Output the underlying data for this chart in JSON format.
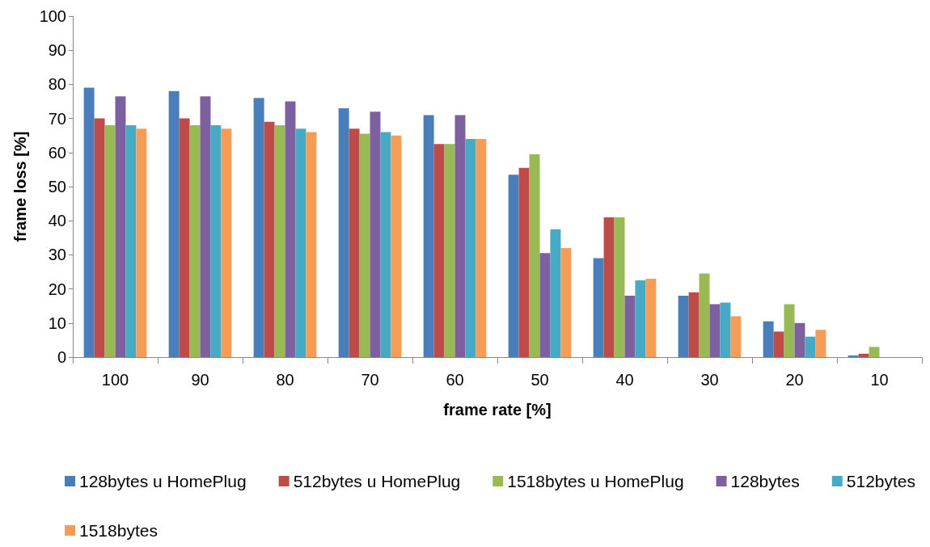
{
  "chart_data": {
    "type": "bar",
    "xlabel": "frame rate [%]",
    "ylabel": "frame loss [%]",
    "categories": [
      "100",
      "90",
      "80",
      "70",
      "60",
      "50",
      "40",
      "30",
      "20",
      "10"
    ],
    "series": [
      {
        "name": "128bytes u HomePlug",
        "color": "#4a7ebb",
        "values": [
          79,
          78,
          76,
          73,
          71,
          53.5,
          29,
          18,
          10.5,
          0.5
        ]
      },
      {
        "name": "512bytes u HomePlug",
        "color": "#be4b48",
        "values": [
          70,
          70,
          69,
          67,
          62.5,
          55.5,
          41,
          19,
          7.5,
          1
        ]
      },
      {
        "name": "1518bytes u HomePlug",
        "color": "#98b954",
        "values": [
          68,
          68,
          68,
          65.5,
          62.5,
          59.5,
          41,
          24.5,
          15.5,
          3
        ]
      },
      {
        "name": "128bytes",
        "color": "#7d60a0",
        "values": [
          76.5,
          76.5,
          75,
          72,
          71,
          30.5,
          18,
          15.5,
          10,
          0
        ]
      },
      {
        "name": "512bytes",
        "color": "#46aac5",
        "values": [
          68,
          68,
          67,
          66,
          64,
          37.5,
          22.5,
          16,
          6,
          0
        ]
      },
      {
        "name": "1518bytes",
        "color": "#f59d56",
        "values": [
          67,
          67,
          66,
          65,
          64,
          32,
          23,
          12,
          8,
          0
        ]
      }
    ],
    "ylim": [
      0,
      100
    ],
    "yticks": [
      0,
      10,
      20,
      30,
      40,
      50,
      60,
      70,
      80,
      90,
      100
    ],
    "grid": false,
    "legend": "bottom"
  }
}
